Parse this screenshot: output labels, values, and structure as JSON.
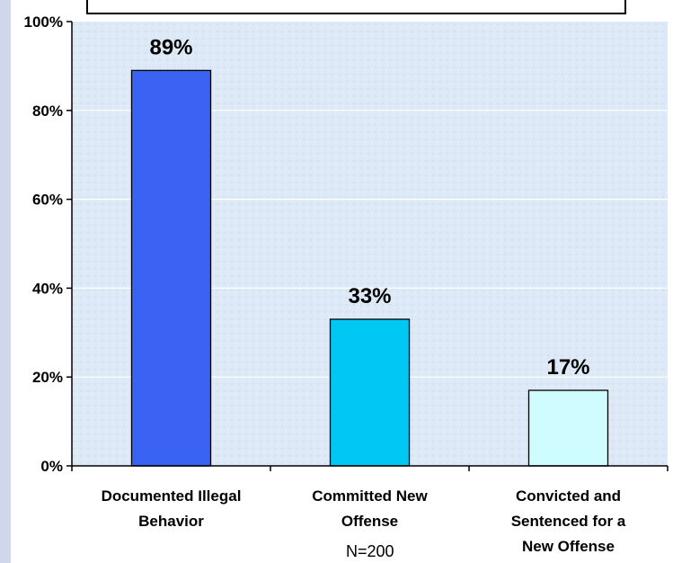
{
  "chart_data": {
    "type": "bar",
    "categories": [
      [
        "Documented Illegal",
        "Behavior"
      ],
      [
        "Committed New",
        "Offense"
      ],
      [
        "Convicted and",
        "Sentenced for a",
        "New Offense"
      ]
    ],
    "values": [
      89,
      33,
      17
    ],
    "data_labels": [
      "89%",
      "33%",
      "17%"
    ],
    "bar_colors": [
      "#3b63f3",
      "#00c8f4",
      "#cffcff"
    ],
    "ylim": [
      0,
      100
    ],
    "yticks": [
      0,
      20,
      40,
      60,
      80,
      100
    ],
    "ytick_labels": [
      "0%",
      "20%",
      "40%",
      "60%",
      "80%",
      "100%"
    ],
    "grid": true,
    "plot_background": "#dde9f6",
    "gridline_color": "#ffffff",
    "note": "N=200"
  }
}
